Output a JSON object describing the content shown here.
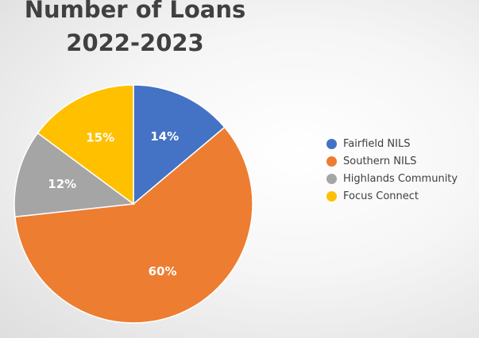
{
  "chart_data": {
    "type": "pie",
    "title_lines": [
      "Number of Loans",
      "2022-2023"
    ],
    "categories": [
      "Fairfield NILS",
      "Southern NILS",
      "Highlands Community",
      "Focus Connect"
    ],
    "values": [
      14,
      60,
      12,
      15
    ],
    "value_labels": [
      "14%",
      "60%",
      "12%",
      "15%"
    ],
    "colors": [
      "#4472c4",
      "#ed7d31",
      "#a5a5a5",
      "#ffc000"
    ],
    "legend_position": "right"
  }
}
